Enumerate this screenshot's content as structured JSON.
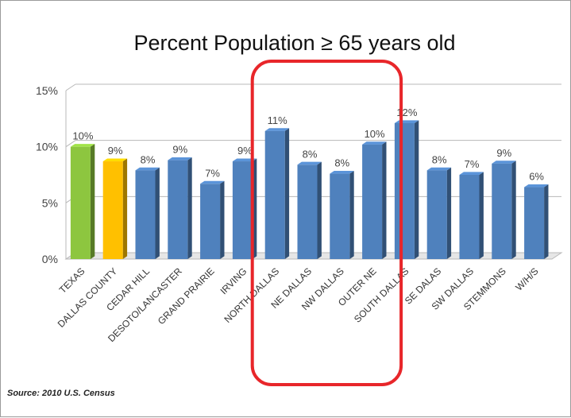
{
  "chart_data": {
    "type": "bar",
    "title": "Percent Population ≥ 65 years old",
    "source": "Source: 2010 U.S. Census",
    "categories": [
      "TEXAS",
      "DALLAS COUNTY",
      "CEDAR HILL",
      "DESOTO/LANCASTER",
      "GRAND PRAIRIE",
      "IRVING",
      "NORTH DALLAS",
      "NE DALLAS",
      "NW DALLAS",
      "OUTER NE",
      "SOUTH DALLAS",
      "SE DALAS",
      "SW DALLAS",
      "STEMMONS",
      "W/H/S"
    ],
    "values": [
      10,
      8.7,
      7.9,
      8.8,
      6.7,
      8.7,
      11.4,
      8.4,
      7.6,
      10.2,
      12.1,
      7.9,
      7.5,
      8.5,
      6.4
    ],
    "data_labels": [
      "10%",
      "9%",
      "8%",
      "9%",
      "7%",
      "9%",
      "11%",
      "8%",
      "8%",
      "10%",
      "12%",
      "8%",
      "7%",
      "9%",
      "6%"
    ],
    "bar_colors": [
      "#8dc63f",
      "#ffc000",
      "#4f81bd",
      "#4f81bd",
      "#4f81bd",
      "#4f81bd",
      "#4f81bd",
      "#4f81bd",
      "#4f81bd",
      "#4f81bd",
      "#4f81bd",
      "#4f81bd",
      "#4f81bd",
      "#4f81bd",
      "#4f81bd"
    ],
    "yticks": [
      "0%",
      "5%",
      "10%",
      "15%"
    ],
    "ylim": [
      0,
      15
    ],
    "grid": true,
    "highlight": {
      "from_category": "NORTH DALLAS",
      "to_category": "OUTER NE",
      "color": "#e8262a"
    }
  }
}
